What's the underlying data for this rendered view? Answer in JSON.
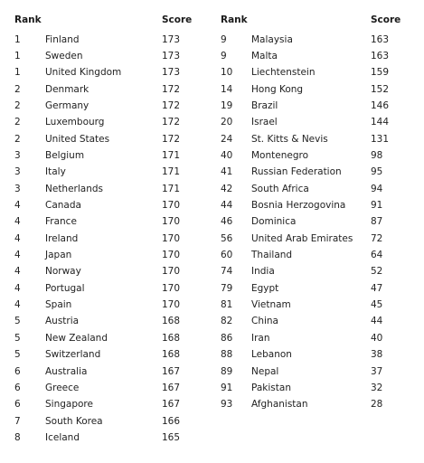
{
  "headers": {
    "rank": "Rank",
    "country": "",
    "score": "Score"
  },
  "left_table": [
    {
      "rank": "1",
      "country": "Finland",
      "score": "173"
    },
    {
      "rank": "1",
      "country": "Sweden",
      "score": "173"
    },
    {
      "rank": "1",
      "country": "United Kingdom",
      "score": "173"
    },
    {
      "rank": "2",
      "country": "Denmark",
      "score": "172"
    },
    {
      "rank": "2",
      "country": "Germany",
      "score": "172"
    },
    {
      "rank": "2",
      "country": "Luxembourg",
      "score": "172"
    },
    {
      "rank": "2",
      "country": "United States",
      "score": "172"
    },
    {
      "rank": "3",
      "country": "Belgium",
      "score": "171"
    },
    {
      "rank": "3",
      "country": "Italy",
      "score": "171"
    },
    {
      "rank": "3",
      "country": "Netherlands",
      "score": "171"
    },
    {
      "rank": "4",
      "country": "Canada",
      "score": "170"
    },
    {
      "rank": "4",
      "country": "France",
      "score": "170"
    },
    {
      "rank": "4",
      "country": "Ireland",
      "score": "170"
    },
    {
      "rank": "4",
      "country": "Japan",
      "score": "170"
    },
    {
      "rank": "4",
      "country": "Norway",
      "score": "170"
    },
    {
      "rank": "4",
      "country": "Portugal",
      "score": "170"
    },
    {
      "rank": "4",
      "country": "Spain",
      "score": "170"
    },
    {
      "rank": "5",
      "country": "Austria",
      "score": "168"
    },
    {
      "rank": "5",
      "country": "New Zealand",
      "score": "168"
    },
    {
      "rank": "5",
      "country": "Switzerland",
      "score": "168"
    },
    {
      "rank": "6",
      "country": "Australia",
      "score": "167"
    },
    {
      "rank": "6",
      "country": "Greece",
      "score": "167"
    },
    {
      "rank": "6",
      "country": "Singapore",
      "score": "167"
    },
    {
      "rank": "7",
      "country": "South Korea",
      "score": "166"
    },
    {
      "rank": "8",
      "country": "Iceland",
      "score": "165"
    }
  ],
  "right_table": [
    {
      "rank": "9",
      "country": "Malaysia",
      "score": "163"
    },
    {
      "rank": "9",
      "country": "Malta",
      "score": "163"
    },
    {
      "rank": "10",
      "country": "Liechtenstein",
      "score": "159"
    },
    {
      "rank": "14",
      "country": "Hong Kong",
      "score": "152"
    },
    {
      "rank": "19",
      "country": "Brazil",
      "score": "146"
    },
    {
      "rank": "20",
      "country": "Israel",
      "score": "144"
    },
    {
      "rank": "24",
      "country": "St. Kitts & Nevis",
      "score": "131"
    },
    {
      "rank": "40",
      "country": "Montenegro",
      "score": "98"
    },
    {
      "rank": "41",
      "country": "Russian Federation",
      "score": "95"
    },
    {
      "rank": "42",
      "country": "South Africa",
      "score": "94"
    },
    {
      "rank": "44",
      "country": "Bosnia Herzogovina",
      "score": "91"
    },
    {
      "rank": "46",
      "country": "Dominica",
      "score": "87"
    },
    {
      "rank": "56",
      "country": "United Arab Emirates",
      "score": "72"
    },
    {
      "rank": "60",
      "country": "Thailand",
      "score": "64"
    },
    {
      "rank": "74",
      "country": "India",
      "score": "52"
    },
    {
      "rank": "79",
      "country": "Egypt",
      "score": "47"
    },
    {
      "rank": "81",
      "country": "Vietnam",
      "score": "45"
    },
    {
      "rank": "82",
      "country": "China",
      "score": "44"
    },
    {
      "rank": "86",
      "country": "Iran",
      "score": "40"
    },
    {
      "rank": "88",
      "country": "Lebanon",
      "score": "38"
    },
    {
      "rank": "89",
      "country": "Nepal",
      "score": "37"
    },
    {
      "rank": "91",
      "country": "Pakistan",
      "score": "32"
    },
    {
      "rank": "93",
      "country": "Afghanistan",
      "score": "28"
    }
  ]
}
